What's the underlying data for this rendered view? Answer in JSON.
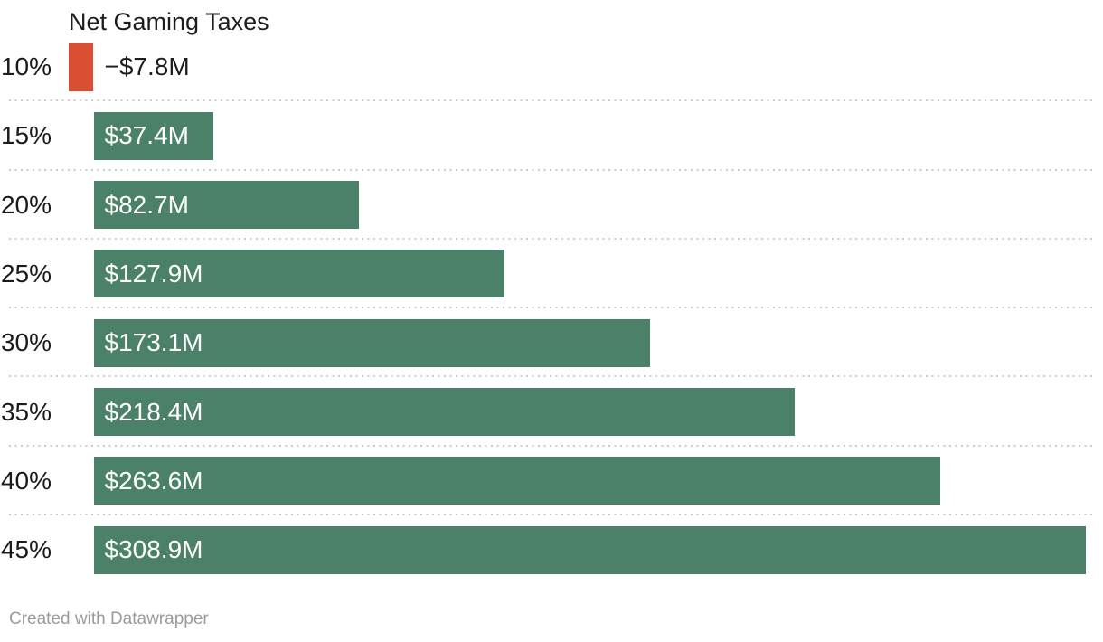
{
  "header": {
    "title": "Net Gaming Taxes"
  },
  "footer": {
    "text": "Created with Datawrapper"
  },
  "colors": {
    "positive_bar": "#4a8168",
    "negative_bar": "#d94f33",
    "text_dark": "#1d1d1d",
    "value_inside_text": "#ffffff",
    "separator": "#cbcbcb",
    "footer_text": "#9b9b9b"
  },
  "chart_data": {
    "type": "bar",
    "orientation": "horizontal",
    "title": "Net Gaming Taxes",
    "categories": [
      "10%",
      "15%",
      "20%",
      "25%",
      "30%",
      "35%",
      "40%",
      "45%"
    ],
    "values": [
      -7.8,
      37.4,
      82.7,
      127.9,
      173.1,
      218.4,
      263.6,
      308.9
    ],
    "value_labels": [
      "−$7.8M",
      "$37.4M",
      "$82.7M",
      "$127.9M",
      "$173.1M",
      "$218.4M",
      "$263.6M",
      "$308.9M"
    ],
    "xlabel": "",
    "ylabel": "",
    "xlim": [
      -7.8,
      308.9
    ],
    "grid": "off",
    "legend": "none",
    "row_separators": "dotted",
    "value_label_position": "inside-start, outside-start for negative",
    "attribution": "Created with Datawrapper"
  }
}
